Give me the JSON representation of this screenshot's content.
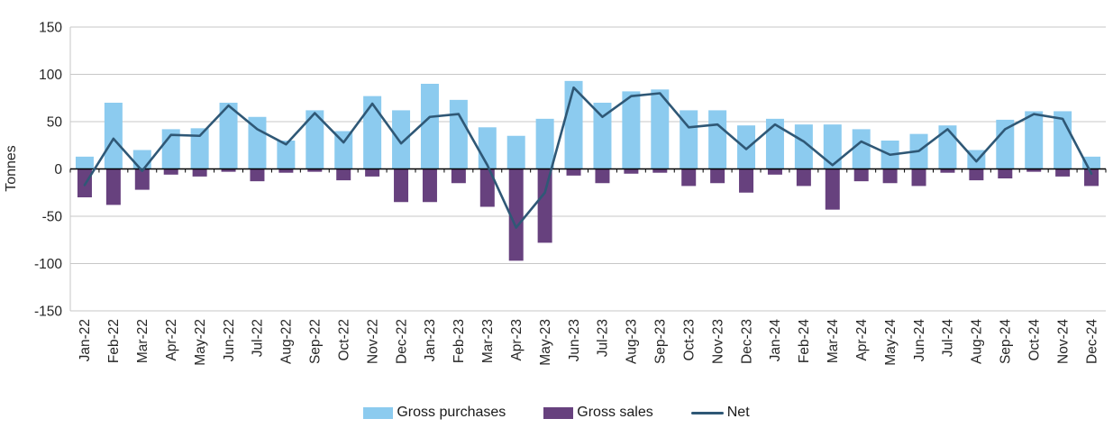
{
  "chart": {
    "ylabel": "Tonnes",
    "grid_color": "#c7c7c7",
    "zero_axis_color": "#000000",
    "text_color": "#262626",
    "legend": [
      {
        "label": "Gross purchases",
        "type": "bar",
        "color": "#8CCBEF"
      },
      {
        "label": "Gross sales",
        "type": "bar",
        "color": "#67417E"
      },
      {
        "label": "Net",
        "type": "line",
        "color": "#2F5876"
      }
    ]
  },
  "chart_data": {
    "type": "bar",
    "title": "",
    "xlabel": "",
    "ylabel": "Tonnes",
    "ylim": [
      -150,
      150
    ],
    "ytick_step": 50,
    "grid": true,
    "legend_position": "bottom",
    "categories": [
      "Jan-22",
      "Feb-22",
      "Mar-22",
      "Apr-22",
      "May-22",
      "Jun-22",
      "Jul-22",
      "Aug-22",
      "Sep-22",
      "Oct-22",
      "Nov-22",
      "Dec-22",
      "Jan-23",
      "Feb-23",
      "Mar-23",
      "Apr-23",
      "May-23",
      "Jun-23",
      "Jul-23",
      "Aug-23",
      "Sep-23",
      "Oct-23",
      "Nov-23",
      "Dec-23",
      "Jan-24",
      "Feb-24",
      "Mar-24",
      "Apr-24",
      "May-24",
      "Jun-24",
      "Jul-24",
      "Aug-24",
      "Sep-24",
      "Oct-24",
      "Nov-24",
      "Dec-24"
    ],
    "series": [
      {
        "name": "Gross purchases",
        "type": "bar",
        "color": "#8CCBEF",
        "values": [
          13,
          70,
          20,
          42,
          43,
          70,
          55,
          30,
          62,
          40,
          77,
          62,
          90,
          73,
          44,
          35,
          53,
          93,
          70,
          82,
          84,
          62,
          62,
          46,
          53,
          47,
          47,
          42,
          30,
          37,
          46,
          20,
          52,
          61,
          61,
          13
        ]
      },
      {
        "name": "Gross sales",
        "type": "bar",
        "color": "#67417E",
        "values": [
          -30,
          -38,
          -22,
          -6,
          -8,
          -3,
          -13,
          -4,
          -3,
          -12,
          -8,
          -35,
          -35,
          -15,
          -40,
          -97,
          -78,
          -7,
          -15,
          -5,
          -4,
          -18,
          -15,
          -25,
          -6,
          -18,
          -43,
          -13,
          -15,
          -18,
          -4,
          -12,
          -10,
          -3,
          -8,
          -18
        ]
      },
      {
        "name": "Net",
        "type": "line",
        "color": "#2F5876",
        "values": [
          -17,
          32,
          -2,
          36,
          35,
          67,
          42,
          26,
          59,
          28,
          69,
          27,
          55,
          58,
          4,
          -62,
          -25,
          86,
          55,
          77,
          80,
          44,
          47,
          21,
          47,
          29,
          4,
          29,
          15,
          19,
          42,
          8,
          42,
          58,
          53,
          -5
        ]
      }
    ]
  }
}
